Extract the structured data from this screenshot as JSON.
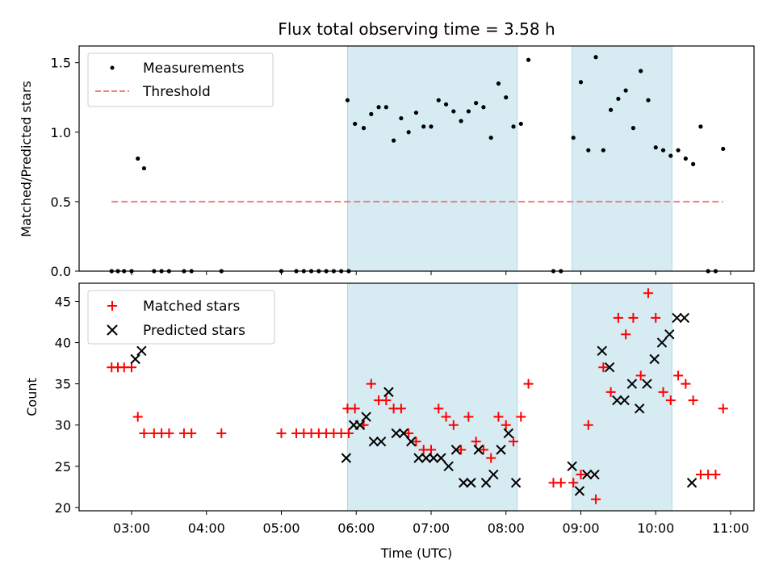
{
  "title": "Flux total observing time = 3.58 h",
  "xlabel": "Time (UTC)",
  "x_ticks": [
    "03:00",
    "04:00",
    "05:00",
    "06:00",
    "07:00",
    "08:00",
    "09:00",
    "10:00",
    "11:00"
  ],
  "observing_windows": [
    [
      "05:53",
      "08:09"
    ],
    [
      "08:53",
      "10:13"
    ]
  ],
  "colors": {
    "window": "#add8e6",
    "threshold": "#f08080",
    "matched": "#ff0000",
    "predicted": "#000000",
    "measurement": "#000000"
  },
  "chart_data": [
    {
      "type": "scatter",
      "ylabel": "Matched/Predicted stars",
      "ylim": [
        0,
        1.62
      ],
      "yticks": [
        "0.0",
        "0.5",
        "1.0",
        "1.5"
      ],
      "legend": {
        "placement": "top-left",
        "entries": [
          "Measurements",
          "Threshold"
        ]
      },
      "threshold": {
        "name": "Threshold",
        "y": 0.5,
        "x": [
          "02:44",
          "10:54"
        ]
      },
      "series": [
        {
          "name": "Measurements",
          "x": [
            "02:44",
            "02:49",
            "02:54",
            "03:00",
            "03:05",
            "03:10",
            "03:18",
            "03:24",
            "03:30",
            "03:42",
            "03:48",
            "04:12",
            "05:00",
            "05:12",
            "05:18",
            "05:24",
            "05:30",
            "05:36",
            "05:42",
            "05:48",
            "05:54",
            "05:53",
            "05:59",
            "06:06",
            "06:12",
            "06:18",
            "06:24",
            "06:30",
            "06:36",
            "06:42",
            "06:48",
            "06:54",
            "07:00",
            "07:06",
            "07:12",
            "07:18",
            "07:24",
            "07:30",
            "07:36",
            "07:42",
            "07:48",
            "07:54",
            "08:00",
            "08:06",
            "08:12",
            "08:18",
            "08:38",
            "08:44",
            "08:54",
            "09:00",
            "09:06",
            "09:12",
            "09:18",
            "09:24",
            "09:30",
            "09:36",
            "09:42",
            "09:48",
            "09:54",
            "10:00",
            "10:06",
            "10:12",
            "10:18",
            "10:24",
            "10:30",
            "10:36",
            "10:42",
            "10:48",
            "10:54"
          ],
          "y": [
            0,
            0,
            0,
            0,
            0.81,
            0.74,
            0,
            0,
            0,
            0,
            0,
            0,
            0,
            0,
            0,
            0,
            0,
            0,
            0,
            0,
            0,
            1.23,
            1.06,
            1.03,
            1.13,
            1.18,
            1.18,
            0.94,
            1.1,
            1.0,
            1.14,
            1.04,
            1.04,
            1.23,
            1.2,
            1.15,
            1.08,
            1.15,
            1.21,
            1.18,
            0.96,
            1.35,
            1.25,
            1.04,
            1.06,
            1.52,
            0,
            0,
            0.96,
            1.36,
            0.87,
            1.54,
            0.87,
            1.16,
            1.24,
            1.3,
            1.03,
            1.44,
            1.23,
            0.89,
            0.87,
            0.83,
            0.87,
            0.81,
            0.77,
            1.04,
            0,
            0,
            0.88
          ]
        }
      ]
    },
    {
      "type": "scatter",
      "ylabel": "Count",
      "ylim": [
        19.6,
        47.2
      ],
      "yticks": [
        "20",
        "25",
        "30",
        "35",
        "40",
        "45"
      ],
      "legend": {
        "placement": "top-left",
        "entries": [
          "Matched stars",
          "Predicted stars"
        ]
      },
      "series": [
        {
          "name": "Matched stars",
          "x": [
            "02:44",
            "02:49",
            "02:54",
            "03:00",
            "03:05",
            "03:10",
            "03:18",
            "03:24",
            "03:30",
            "03:42",
            "03:48",
            "04:12",
            "05:00",
            "05:12",
            "05:18",
            "05:24",
            "05:30",
            "05:36",
            "05:42",
            "05:48",
            "05:54",
            "05:53",
            "05:59",
            "06:06",
            "06:12",
            "06:18",
            "06:24",
            "06:30",
            "06:36",
            "06:42",
            "06:48",
            "06:54",
            "07:00",
            "07:06",
            "07:12",
            "07:18",
            "07:24",
            "07:30",
            "07:36",
            "07:42",
            "07:48",
            "07:54",
            "08:00",
            "08:06",
            "08:12",
            "08:18",
            "08:38",
            "08:44",
            "08:54",
            "09:00",
            "09:06",
            "09:12",
            "09:18",
            "09:24",
            "09:30",
            "09:36",
            "09:42",
            "09:48",
            "09:54",
            "10:00",
            "10:06",
            "10:12",
            "10:18",
            "10:24",
            "10:30",
            "10:36",
            "10:42",
            "10:48",
            "10:54"
          ],
          "y": [
            37,
            37,
            37,
            37,
            31,
            29,
            29,
            29,
            29,
            29,
            29,
            29,
            29,
            29,
            29,
            29,
            29,
            29,
            29,
            29,
            29,
            32,
            32,
            30,
            35,
            33,
            33,
            32,
            32,
            29,
            28,
            27,
            27,
            32,
            31,
            30,
            27,
            31,
            28,
            27,
            26,
            31,
            30,
            28,
            31,
            35,
            23,
            23,
            23,
            24,
            30,
            21,
            37,
            34,
            43,
            41,
            43,
            36,
            46,
            43,
            34,
            33,
            36,
            35,
            33,
            24,
            24,
            24,
            32
          ]
        },
        {
          "name": "Predicted stars",
          "x": [
            "03:03",
            "03:08",
            "05:52",
            "05:58",
            "06:03",
            "06:08",
            "06:14",
            "06:20",
            "06:26",
            "06:32",
            "06:38",
            "06:44",
            "06:50",
            "06:56",
            "07:02",
            "07:08",
            "07:14",
            "07:20",
            "07:26",
            "07:32",
            "07:38",
            "07:44",
            "07:50",
            "07:56",
            "08:02",
            "08:08",
            "08:53",
            "08:59",
            "09:05",
            "09:11",
            "09:17",
            "09:23",
            "09:29",
            "09:35",
            "09:41",
            "09:47",
            "09:53",
            "09:59",
            "10:05",
            "10:11",
            "10:17",
            "10:23",
            "10:29"
          ],
          "y": [
            38,
            39,
            26,
            30,
            30,
            31,
            28,
            28,
            34,
            29,
            29,
            28,
            26,
            26,
            26,
            26,
            25,
            27,
            23,
            23,
            27,
            23,
            24,
            27,
            29,
            23,
            25,
            22,
            24,
            24,
            39,
            37,
            33,
            33,
            35,
            32,
            35,
            38,
            40,
            41,
            43,
            43,
            23
          ]
        }
      ]
    }
  ]
}
